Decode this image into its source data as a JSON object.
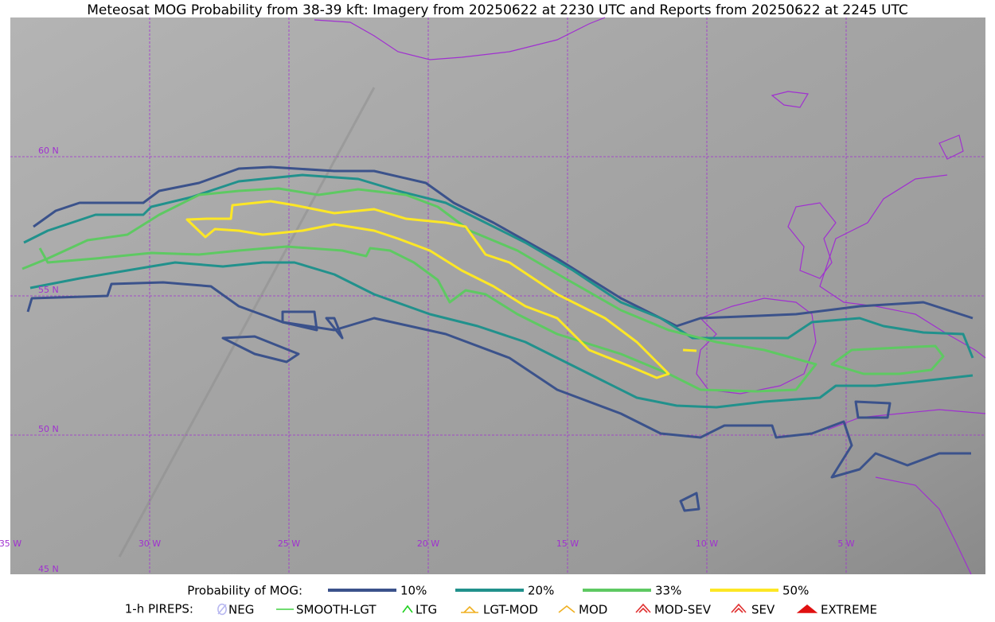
{
  "header": {
    "title": "Meteosat MOG Probability from 38-39 kft: Imagery from 20250622 at 2230 UTC and Reports from 20250622 at 2245 UTC"
  },
  "map": {
    "lat_labels": [
      "60 N",
      "55 N",
      "50 N",
      "45 N"
    ],
    "lon_labels": [
      "35 W",
      "30 W",
      "25 W",
      "20 W",
      "15 W",
      "10 W",
      "5 W"
    ]
  },
  "legend": {
    "probability": {
      "title": "Probability of MOG:",
      "items": [
        {
          "label": "10%",
          "color": "#3b528b"
        },
        {
          "label": "20%",
          "color": "#21918c"
        },
        {
          "label": "33%",
          "color": "#5ec962"
        },
        {
          "label": "50%",
          "color": "#fde725"
        }
      ]
    },
    "pireps": {
      "title": "1-h PIREPS:",
      "items": [
        {
          "label": "NEG",
          "color": "#b8b8f0"
        },
        {
          "label": "SMOOTH-LGT",
          "color": "#40d040"
        },
        {
          "label": "LTG",
          "color": "#20d020"
        },
        {
          "label": "LGT-MOD",
          "color": "#f0b020"
        },
        {
          "label": "MOD",
          "color": "#f0b020"
        },
        {
          "label": "MOD-SEV",
          "color": "#e03030"
        },
        {
          "label": "SEV",
          "color": "#e03030"
        },
        {
          "label": "EXTREME",
          "color": "#e01010"
        }
      ]
    }
  }
}
